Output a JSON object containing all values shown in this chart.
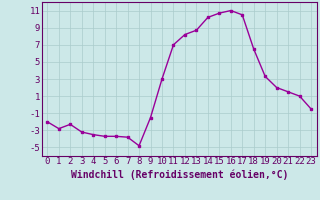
{
  "hours": [
    0,
    1,
    2,
    3,
    4,
    5,
    6,
    7,
    8,
    9,
    10,
    11,
    12,
    13,
    14,
    15,
    16,
    17,
    18,
    19,
    20,
    21,
    22,
    23
  ],
  "values": [
    -2,
    -2.8,
    -2.3,
    -3.2,
    -3.5,
    -3.7,
    -3.7,
    -3.8,
    -4.8,
    -1.5,
    3.0,
    7.0,
    8.2,
    8.7,
    10.2,
    10.7,
    11.0,
    10.5,
    6.5,
    3.3,
    2.0,
    1.5,
    1.0,
    -0.5
  ],
  "line_color": "#990099",
  "marker": "s",
  "marker_size": 2,
  "bg_color": "#cce8e8",
  "grid_color": "#aacccc",
  "xlabel": "Windchill (Refroidissement éolien,°C)",
  "xlabel_fontsize": 7,
  "tick_fontsize": 6.5,
  "ylim": [
    -6,
    12
  ],
  "yticks": [
    -5,
    -3,
    -1,
    1,
    3,
    5,
    7,
    9,
    11
  ]
}
